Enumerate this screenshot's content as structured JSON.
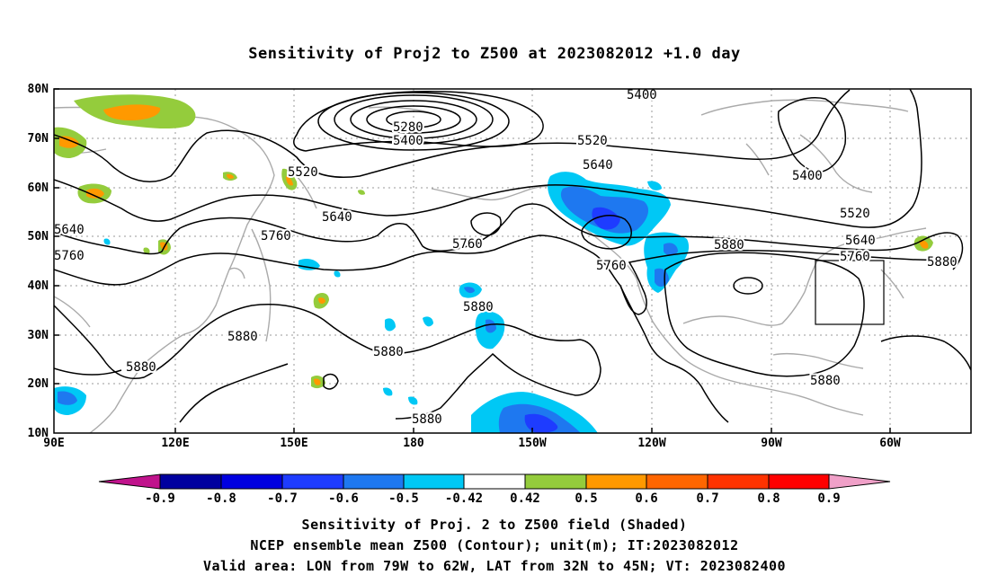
{
  "title": "Sensitivity of Proj2 to Z500 at 2023082012 +1.0 day",
  "lat_labels": [
    "80N",
    "70N",
    "60N",
    "50N",
    "40N",
    "30N",
    "20N",
    "10N"
  ],
  "lon_labels": [
    "90E",
    "120E",
    "150E",
    "180",
    "150W",
    "120W",
    "90W",
    "60W"
  ],
  "contour_labels": [
    "5280",
    "5400",
    "5400",
    "5400",
    "5520",
    "5520",
    "5520",
    "5640",
    "5640",
    "5640",
    "5640",
    "5760",
    "5760",
    "5760",
    "5760",
    "5760",
    "5880",
    "5880",
    "5880",
    "5880",
    "5880",
    "5880",
    "5880",
    "5880"
  ],
  "colorbar": {
    "labels": [
      "-0.9",
      "-0.8",
      "-0.7",
      "-0.6",
      "-0.5",
      "-0.42",
      "0.42",
      "0.5",
      "0.6",
      "0.7",
      "0.8",
      "0.9"
    ],
    "colors": [
      "#c0138c",
      "#00009f",
      "#0000e0",
      "#1e3cff",
      "#1e78f0",
      "#00c8f5",
      "#ffffff",
      "#94cc3c",
      "#ff9900",
      "#ff6600",
      "#ff3300",
      "#ff0000",
      "#f0a0c8"
    ]
  },
  "box_region": "LON 79W to 62W, LAT 32N to 45N",
  "captions": {
    "line1": "Sensitivity of Proj. 2 to Z500 field (Shaded)",
    "line2": "NCEP ensemble mean Z500 (Contour); unit(m); IT:2023082012",
    "line3": "Valid area: LON from 79W to 62W, LAT from 32N to 45N; VT: 2023082400"
  }
}
